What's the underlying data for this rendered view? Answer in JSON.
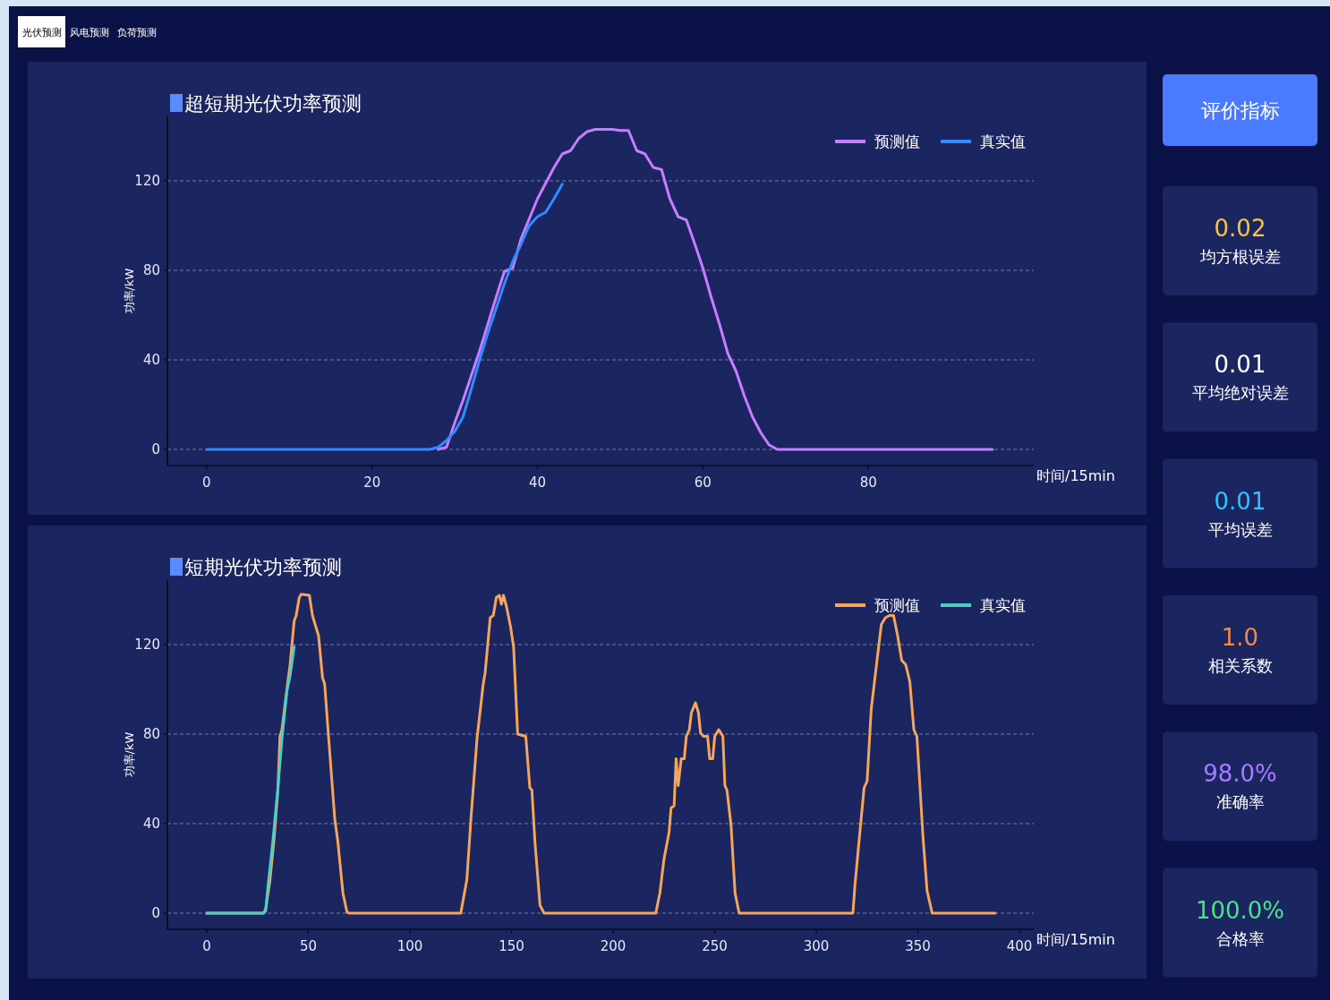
{
  "chart_data": [
    {
      "type": "other",
      "annotations": [
        "光伏预测",
        "风电预测",
        "负荷预测"
      ]
    },
    {
      "type": "line",
      "title": "超短期光伏功率预测",
      "xlabel": "时间/15min",
      "ylabel": "功率/kW",
      "xlim": [
        -4.75,
        100
      ],
      "ylim": [
        -7.2,
        148.8
      ],
      "xticks": [
        0,
        20,
        40,
        60,
        80
      ],
      "yticks": [
        0,
        40,
        80,
        120
      ],
      "grid": "y",
      "legend": "top right",
      "series": [
        {
          "name": "预测值",
          "color": "#c77dff",
          "x": [
            28,
            29,
            30,
            31,
            32,
            33,
            34,
            35,
            36,
            37,
            38,
            39,
            40,
            41,
            42,
            43,
            44,
            45,
            46,
            47,
            48,
            49,
            50,
            51,
            52,
            53,
            54,
            55,
            56,
            57,
            58,
            59,
            60,
            61,
            62,
            63,
            64,
            65,
            66,
            67,
            68,
            69,
            80,
            95
          ],
          "values": [
            0,
            1,
            12,
            22,
            33,
            44,
            56,
            68,
            79.5,
            81,
            94,
            103,
            112,
            119,
            126,
            132,
            133.5,
            139,
            142,
            143,
            143,
            143,
            142.5,
            142.5,
            133.5,
            132,
            126,
            125,
            112,
            104,
            102.5,
            92,
            81,
            68,
            56,
            43,
            35,
            24,
            14.5,
            7.5,
            2,
            0,
            0,
            0
          ]
        },
        {
          "name": "真实值",
          "color": "#2f8bff",
          "x": [
            0,
            10,
            20,
            27,
            28,
            29,
            30,
            31,
            32,
            33,
            34,
            35,
            36,
            37,
            38,
            39,
            40,
            41,
            42,
            43
          ],
          "values": [
            0,
            0,
            0,
            0,
            1,
            4,
            8,
            14.5,
            27,
            40,
            52,
            63,
            74,
            84,
            91.5,
            100,
            104,
            106,
            112,
            118.5
          ]
        }
      ]
    },
    {
      "type": "line",
      "title": "短期光伏功率预测",
      "xlabel": "时间/15min",
      "ylabel": "功率/kW",
      "xlim": [
        -19.4,
        407
      ],
      "ylim": [
        -7.2,
        148.8
      ],
      "xticks": [
        0,
        50,
        100,
        150,
        200,
        250,
        300,
        350,
        400
      ],
      "yticks": [
        0,
        40,
        80,
        120
      ],
      "grid": "y",
      "legend": "top right",
      "series": [
        {
          "name": "预测值",
          "color": "#f5a65b",
          "x": [
            0,
            28,
            29,
            31,
            33,
            35,
            36,
            37,
            39,
            41,
            43,
            44,
            45.5,
            46.5,
            50.5,
            52,
            54,
            55,
            57,
            58,
            60,
            63,
            64.5,
            67,
            69,
            70,
            125,
            128,
            130,
            133,
            136,
            137,
            139.5,
            141,
            142.5,
            144,
            145,
            146,
            147.5,
            149.5,
            151,
            153,
            157,
            159,
            160,
            161.5,
            164,
            166,
            221,
            223,
            225,
            227.5,
            228.5,
            230,
            231,
            232,
            233.5,
            235,
            236,
            237.5,
            238.5,
            240.5,
            242,
            243,
            244.5,
            246.5,
            247.5,
            249,
            250,
            252,
            254,
            255,
            256,
            258,
            260,
            262,
            318,
            319,
            321,
            323.5,
            325,
            327,
            330,
            332,
            334,
            336,
            338,
            340,
            342,
            344,
            346,
            348,
            349.5,
            352.5,
            354.5,
            357,
            388
          ],
          "values": [
            0,
            0,
            2,
            14,
            32,
            55,
            79,
            82,
            97,
            111,
            130.5,
            133,
            141,
            142.5,
            142,
            133,
            127,
            124,
            105,
            102.5,
            78,
            42,
            32,
            9,
            0.5,
            0,
            0,
            15,
            42,
            78,
            102,
            107.5,
            132,
            133,
            141,
            142,
            138,
            142,
            137,
            128,
            119,
            80,
            79,
            56,
            55,
            32,
            3.5,
            0,
            0,
            9,
            24,
            36,
            47,
            48,
            69,
            57,
            69,
            69,
            79,
            82,
            89.5,
            94,
            89.5,
            80.5,
            79,
            79,
            69,
            69,
            79,
            82,
            79,
            57,
            55,
            39.5,
            9,
            0,
            0,
            12.5,
            32,
            56,
            59,
            91,
            114,
            129,
            132,
            133,
            133,
            124,
            113,
            111,
            103.5,
            82,
            79,
            34,
            10,
            0,
            0
          ]
        },
        {
          "name": "真实值",
          "color": "#4ecdc4",
          "x": [
            0,
            28,
            29,
            30,
            32.5,
            35,
            37,
            39.5,
            41,
            43
          ],
          "values": [
            0,
            0,
            1,
            11,
            32,
            56,
            78,
            99.5,
            106,
            119
          ]
        }
      ]
    },
    {
      "type": "other",
      "title": "评价指标",
      "annotations": [
        "0.02",
        "均方根误差",
        "0.01",
        "平均绝对误差",
        "0.01",
        "平均误差",
        "1.0",
        "相关系数",
        "98.0%",
        "准确率",
        "100.0%",
        "合格率"
      ]
    }
  ]
}
